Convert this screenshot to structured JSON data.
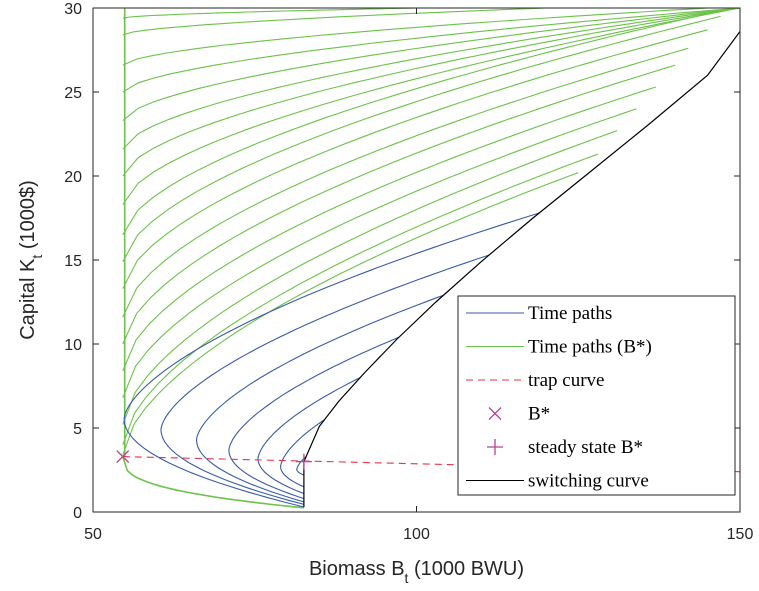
{
  "chart_data": {
    "type": "line",
    "xlabel": {
      "main": "Biomass B",
      "sub": "t",
      "rest": " (1000 BWU)"
    },
    "ylabel": {
      "main": "Capital K",
      "sub": "t",
      "rest": " (1000$)"
    },
    "xlim": [
      50,
      150
    ],
    "ylim": [
      0,
      30
    ],
    "x_ticks": [
      "50",
      "100",
      "150"
    ],
    "y_ticks": [
      "0",
      "5",
      "10",
      "15",
      "20",
      "25",
      "30"
    ],
    "grid": false,
    "legend_position": "bottom-right",
    "legend": [
      {
        "label": "Time paths",
        "style": "line",
        "color": "#3a5ba7"
      },
      {
        "label": "Time paths (B*)",
        "style": "line",
        "color": "#6cc24a"
      },
      {
        "label": "trap curve",
        "style": "dashed",
        "color": "#e8334a"
      },
      {
        "label": "B*",
        "style": "x-marker",
        "color": "#b5448e"
      },
      {
        "label": "steady state B*",
        "style": "plus-marker",
        "color": "#b5448e"
      },
      {
        "label": "switching curve",
        "style": "line",
        "color": "#000000"
      }
    ],
    "x_star": 54.6,
    "x_ss": 82.6,
    "trap_curve": {
      "x": [
        54.6,
        150
      ],
      "y": [
        3.3,
        2.4
      ]
    },
    "switching_curve": {
      "x": [
        82.6,
        85,
        88,
        92,
        97,
        103,
        110,
        118,
        127,
        136,
        145,
        150
      ],
      "y": [
        3.0,
        5.1,
        6.6,
        8.3,
        10.3,
        12.5,
        14.9,
        17.5,
        20.3,
        23.1,
        26.0,
        28.6
      ]
    },
    "blue_paths": {
      "x0": 82.6,
      "k_start": [
        0.3,
        0.45,
        0.6,
        0.8,
        1.1,
        1.5,
        2.2
      ],
      "k_end": [
        17.8,
        15.3,
        12.9,
        10.4,
        8.0,
        5.5,
        3.3
      ],
      "b_vertex": [
        54.8,
        60.5,
        66.0,
        71.0,
        75.5,
        79.0,
        81.5
      ]
    },
    "green_paths": {
      "xb": 54.6,
      "k_start": [
        3.4,
        4.0,
        5.2,
        6.8,
        8.4,
        10.0,
        11.6,
        13.3,
        14.9,
        16.5,
        18.3,
        20.0,
        21.6,
        23.3,
        25.0,
        26.6,
        28.4,
        29.4
      ],
      "end_b": [
        125,
        128,
        131,
        134,
        137,
        140,
        142,
        145,
        147,
        149,
        150,
        150,
        150,
        150,
        150,
        145,
        120,
        100
      ],
      "end_k": [
        20.2,
        21.3,
        22.7,
        24.0,
        25.3,
        26.6,
        27.6,
        28.7,
        29.5,
        30.0,
        30.0,
        30.0,
        30.0,
        30.0,
        30.0,
        30.0,
        30.0,
        30.0
      ]
    }
  }
}
